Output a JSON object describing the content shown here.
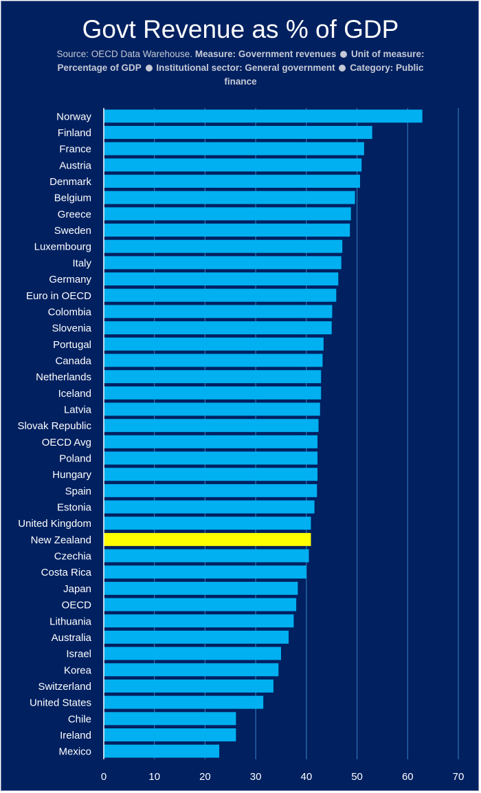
{
  "chart_data": {
    "type": "bar",
    "orientation": "horizontal",
    "title": "Govt Revenue as % of GDP",
    "subtitle": {
      "source": "Source: OECD Data Warehouse.",
      "measure_label": "Measure: Government revenues",
      "unit_label": "Unit of measure: Percentage of GDP",
      "sector_label": "Institutional sector: General government",
      "category_label": "Category: Public finance"
    },
    "categories": [
      "Norway",
      "Finland",
      "France",
      "Austria",
      "Denmark",
      "Belgium",
      "Greece",
      "Sweden",
      "Luxembourg",
      "Italy",
      "Germany",
      "Euro in OECD",
      "Colombia",
      "Slovenia",
      "Portugal",
      "Canada",
      "Netherlands",
      "Iceland",
      "Latvia",
      "Slovak Republic",
      "OECD Avg",
      "Poland",
      "Hungary",
      "Spain",
      "Estonia",
      "United Kingdom",
      "New Zealand",
      "Czechia",
      "Costa Rica",
      "Japan",
      "OECD",
      "Lithuania",
      "Australia",
      "Israel",
      "Korea",
      "Switzerland",
      "United States",
      "Chile",
      "Ireland",
      "Mexico"
    ],
    "values": [
      62.9,
      53.0,
      51.4,
      50.9,
      50.6,
      49.6,
      48.8,
      48.6,
      47.1,
      46.9,
      46.3,
      45.9,
      45.1,
      45.0,
      43.4,
      43.2,
      42.9,
      42.9,
      42.7,
      42.4,
      42.2,
      42.2,
      42.2,
      42.1,
      41.6,
      40.9,
      40.9,
      40.5,
      40.0,
      38.3,
      38.0,
      37.5,
      36.5,
      35.0,
      34.5,
      33.5,
      31.5,
      26.1,
      26.1,
      22.8
    ],
    "highlight": "New Zealand",
    "xlim": [
      0,
      70
    ],
    "xticks": [
      0,
      10,
      20,
      30,
      40,
      50,
      60,
      70
    ],
    "grid": true,
    "xlabel": "",
    "ylabel": "",
    "colors": {
      "background": "#002060",
      "bar": "#00b0f0",
      "highlight": "#ffff00",
      "grid": "#2e75b6",
      "text": "#ffffff",
      "axis": "#ffffff"
    }
  }
}
